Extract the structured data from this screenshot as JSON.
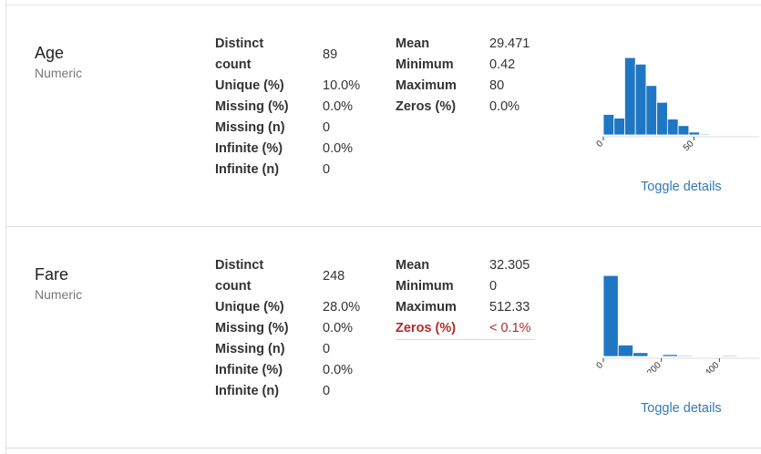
{
  "variables": [
    {
      "name": "Age",
      "type": "Numeric",
      "stats_left": [
        {
          "label": "Distinct count",
          "value": "89"
        },
        {
          "label": "Unique (%)",
          "value": "10.0%"
        },
        {
          "label": "Missing (%)",
          "value": "0.0%"
        },
        {
          "label": "Missing (n)",
          "value": "0"
        },
        {
          "label": "Infinite (%)",
          "value": "0.0%"
        },
        {
          "label": "Infinite (n)",
          "value": "0"
        }
      ],
      "stats_right": [
        {
          "label": "Mean",
          "value": "29.471"
        },
        {
          "label": "Minimum",
          "value": "0.42"
        },
        {
          "label": "Maximum",
          "value": "80"
        },
        {
          "label": "Zeros (%)",
          "value": "0.0%"
        }
      ],
      "toggle_label": "Toggle details",
      "chart_data": {
        "type": "bar",
        "bin_start": 0,
        "bin_width": 5.9,
        "values": [
          22,
          18,
          83,
          76,
          53,
          35,
          17,
          10,
          3,
          1
        ],
        "xticks": [
          {
            "value": 0,
            "label": "0"
          },
          {
            "value": 50,
            "label": "50"
          }
        ],
        "xlim": [
          0,
          82
        ],
        "ylim": [
          0,
          92
        ],
        "color": "#1f77c4"
      }
    },
    {
      "name": "Fare",
      "type": "Numeric",
      "stats_left": [
        {
          "label": "Distinct count",
          "value": "248"
        },
        {
          "label": "Unique (%)",
          "value": "28.0%"
        },
        {
          "label": "Missing (%)",
          "value": "0.0%"
        },
        {
          "label": "Missing (n)",
          "value": "0"
        },
        {
          "label": "Infinite (%)",
          "value": "0.0%"
        },
        {
          "label": "Infinite (n)",
          "value": "0"
        }
      ],
      "stats_right": [
        {
          "label": "Mean",
          "value": "32.305"
        },
        {
          "label": "Minimum",
          "value": "0"
        },
        {
          "label": "Maximum",
          "value": "512.33"
        },
        {
          "label": "Zeros (%)",
          "value": "< 0.1%",
          "alert": true
        }
      ],
      "toggle_label": "Toggle details",
      "chart_data": {
        "type": "bar",
        "bin_start": 0,
        "bin_width": 51.2,
        "values": [
          85,
          12,
          4,
          0,
          2,
          1,
          0,
          0,
          1,
          0
        ],
        "xticks": [
          {
            "value": 0,
            "label": "0"
          },
          {
            "value": 200,
            "label": "200"
          },
          {
            "value": 400,
            "label": "400"
          }
        ],
        "xlim": [
          0,
          512
        ],
        "ylim": [
          0,
          90
        ],
        "color": "#1f77c4"
      }
    }
  ]
}
